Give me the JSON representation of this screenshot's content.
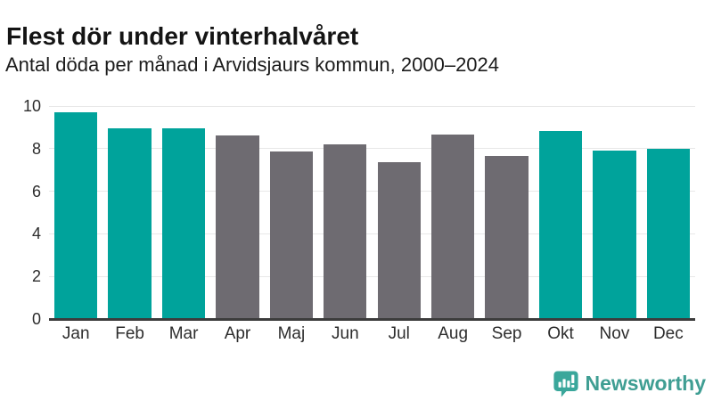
{
  "chart_data": {
    "type": "bar",
    "title": "Flest dör under vinterhalvåret",
    "subtitle": "Antal döda per månad i Arvidsjaurs kommun, 2000–2024",
    "categories": [
      "Jan",
      "Feb",
      "Mar",
      "Apr",
      "Maj",
      "Jun",
      "Jul",
      "Aug",
      "Sep",
      "Okt",
      "Nov",
      "Dec"
    ],
    "values": [
      9.7,
      8.95,
      8.95,
      8.6,
      7.85,
      8.2,
      7.35,
      8.65,
      7.65,
      8.85,
      7.9,
      8.0
    ],
    "highlighted": [
      true,
      true,
      true,
      false,
      false,
      false,
      false,
      false,
      false,
      true,
      true,
      true
    ],
    "colors": {
      "highlight": "#00a39b",
      "default": "#6e6b71",
      "gridline": "#e8e8e8",
      "axis_line": "#3c3c3c",
      "text": "#2d2d2d"
    },
    "xlabel": "",
    "ylabel": "",
    "ylim": [
      0,
      10
    ],
    "yticks": [
      0,
      2,
      4,
      6,
      8,
      10
    ],
    "grid": "horizontal",
    "legend": false
  },
  "branding": {
    "logo_text": "Newsworthy",
    "logo_icon": "bar-chart-speech-bubble-icon",
    "logo_color": "#3f9e93",
    "logo_icon_color": "#3aa79b"
  }
}
